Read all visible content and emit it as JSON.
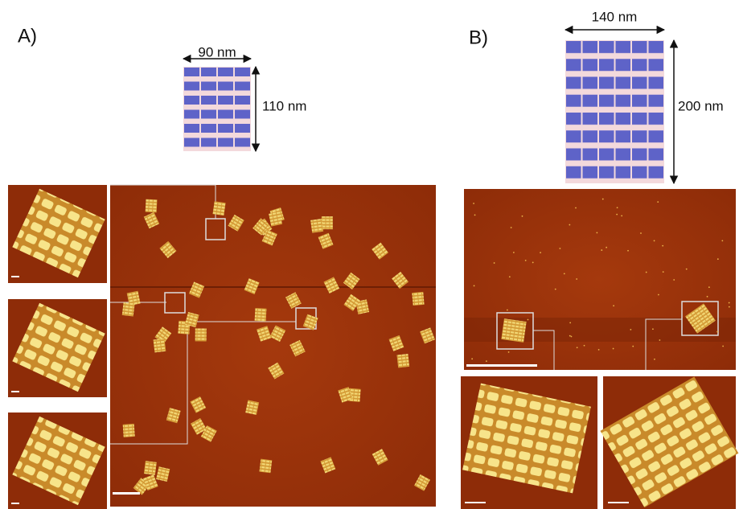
{
  "panels": [
    {
      "label": "A)",
      "width_label": "90 nm",
      "height_label": "110 nm"
    },
    {
      "label": "B)",
      "width_label": "140 nm",
      "height_label": "200 nm"
    }
  ]
}
